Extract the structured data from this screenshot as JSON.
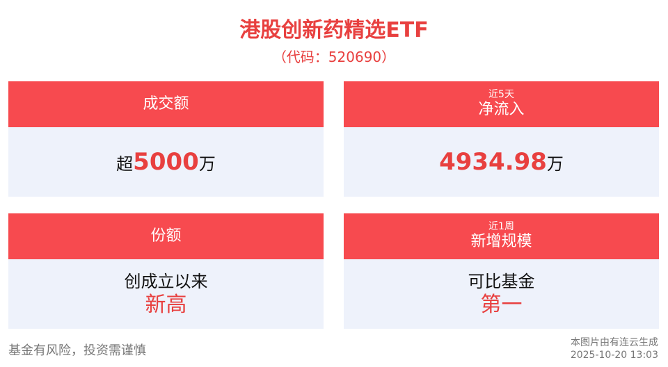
{
  "header": {
    "title": "港股创新药精选ETF",
    "subtitle": "（代码：520690）"
  },
  "cards": [
    {
      "label": "成交额",
      "value": {
        "prefix": "超",
        "number": "5000",
        "unit": "万"
      }
    },
    {
      "period": "近5天",
      "label": "净流入",
      "value": {
        "number": "4934.98",
        "unit": "万"
      }
    },
    {
      "label": "份额",
      "value": {
        "line": "创成立以来",
        "highlight": "新高"
      }
    },
    {
      "period": "近1周",
      "label": "新增规模",
      "value": {
        "line": "可比基金",
        "highlight": "第一"
      }
    }
  ],
  "footer": {
    "disclaimer": "基金有风险，投资需谨慎",
    "generator": "本图片由有连云生成",
    "timestamp": "2025-10-20 13:03"
  }
}
